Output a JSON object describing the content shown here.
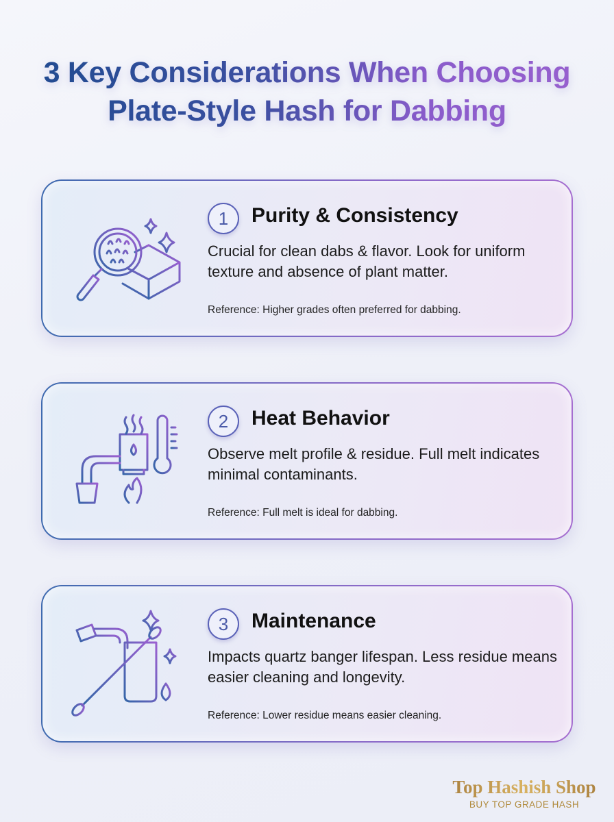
{
  "title": {
    "line1": "3 Key Considerations When Choosing",
    "line2": "Plate-Style Hash for Dabbing"
  },
  "cards": [
    {
      "number": "1",
      "heading": "Purity & Consistency",
      "body": "Crucial for clean dabs & flavor. Look for uniform texture and absence of plant matter.",
      "reference": "Reference: Higher grades often preferred for dabbing.",
      "icon": "magnifier-hash-block-icon"
    },
    {
      "number": "2",
      "heading": "Heat Behavior",
      "body": "Observe melt profile & residue. Full melt indicates minimal contaminants.",
      "reference": "Reference: Full melt is ideal for dabbing.",
      "icon": "banger-thermometer-flame-icon"
    },
    {
      "number": "3",
      "heading": "Maintenance",
      "body": "Impacts quartz banger lifespan. Less residue means easier cleaning and longevity.",
      "reference": "Reference: Lower residue means easier cleaning.",
      "icon": "cotton-swab-cleaning-icon"
    }
  ],
  "brand": {
    "name": "Top Hashish Shop",
    "tagline": "BUY TOP GRADE HASH"
  },
  "colors": {
    "title_start": "#1d4a8e",
    "title_end": "#9a62cf",
    "brand_gold": "#c9a14f"
  }
}
